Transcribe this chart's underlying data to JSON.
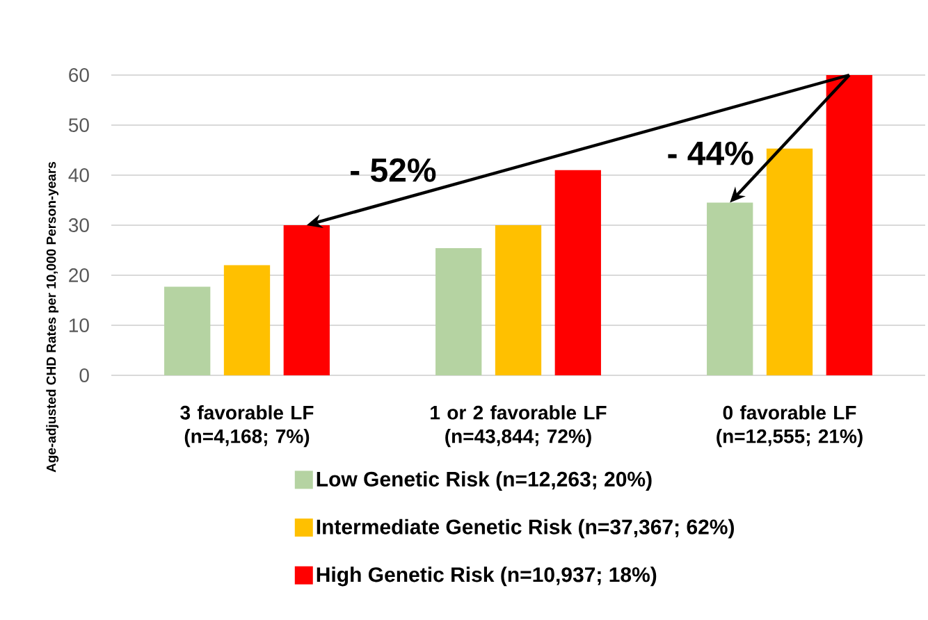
{
  "chart_data": {
    "type": "bar",
    "ylabel": "Age-adjusted CHD Rates per 10,000 Person-years",
    "categories": [
      "3 favorable LF (n=4,168; 7%)",
      "1 or 2 favorable LF (n=43,844; 72%)",
      "0 favorable LF (n=12,555; 21%)"
    ],
    "series": [
      {
        "name": "Low Genetic Risk (n=12,263; 20%)",
        "color": "#b5d3a2",
        "values": [
          17.7,
          25.4,
          34.5
        ]
      },
      {
        "name": "Intermediate Genetic Risk (n=37,367; 62%)",
        "color": "#ffc000",
        "values": [
          22,
          30,
          45.3
        ]
      },
      {
        "name": "High Genetic Risk (n=10,937; 18%)",
        "color": "#ff0000",
        "values": [
          30,
          41,
          60
        ]
      }
    ],
    "ylim": [
      0,
      60
    ],
    "yticks": [
      0,
      10,
      20,
      30,
      40,
      50,
      60
    ],
    "grid": "y",
    "legend": "bottom",
    "annotations": [
      "- 52%",
      "- 44%"
    ]
  }
}
